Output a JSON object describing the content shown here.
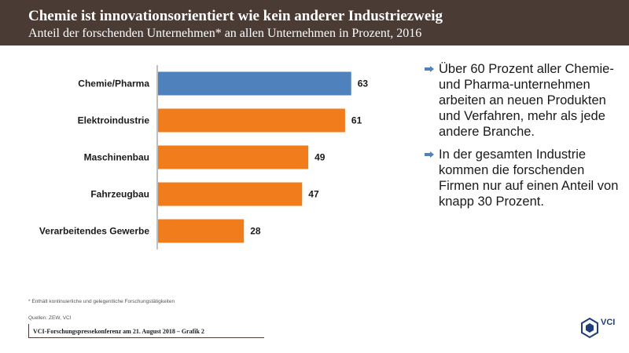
{
  "header": {
    "title": "Chemie ist innovationsorientiert wie kein anderer Industriezweig",
    "subtitle": "Anteil der forschenden Unternehmen* an allen Unternehmen in Prozent, 2016"
  },
  "colors": {
    "header_bg": "#4a3b34",
    "highlight": "#4f81bd",
    "bar": "#f07c1b",
    "bullet_arrow": "#4f81bd"
  },
  "chart_data": {
    "type": "bar",
    "orientation": "horizontal",
    "title": "Anteil der forschenden Unternehmen* an allen Unternehmen in Prozent, 2016",
    "categories": [
      "Chemie/Pharma",
      "Elektroindustrie",
      "Maschinenbau",
      "Fahrzeugbau",
      "Verarbeitendes Gewerbe"
    ],
    "values": [
      63,
      61,
      49,
      47,
      28
    ],
    "highlight": "Chemie/Pharma",
    "xlim": [
      0,
      70
    ],
    "xlabel": "",
    "ylabel": ""
  },
  "bullets": [
    "Über 60 Prozent aller Chemie- und Pharma-unternehmen arbeiten an neuen Produkten und Verfahren, mehr als jede andere Branche.",
    "In der gesamten Industrie kommen die forschenden Firmen nur auf einen Anteil von knapp 30 Prozent."
  ],
  "footnote": "* Enthält kontinuierliche und gelegentliche Forschungstätigkeiten",
  "sources": "Quellen: ZEW, VCI",
  "footer": "VCI-Forschungspressekonferenz am 21. August 2018 – Grafik 2",
  "logo": {
    "text": "VCI",
    "icon": "vci-hexagon-icon"
  }
}
